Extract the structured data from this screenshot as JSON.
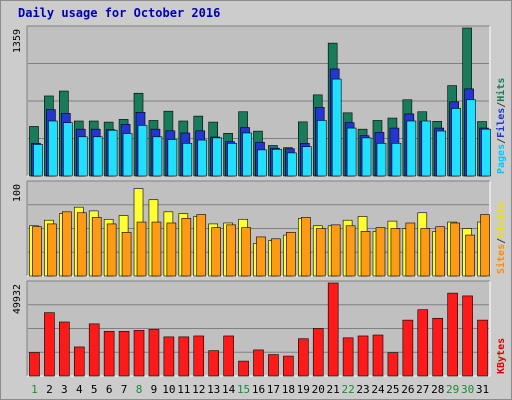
{
  "chart_data": {
    "type": "bar",
    "title": "Daily usage for October 2016",
    "categories": [
      "1",
      "2",
      "3",
      "4",
      "5",
      "6",
      "7",
      "8",
      "9",
      "10",
      "11",
      "12",
      "13",
      "14",
      "15",
      "16",
      "17",
      "18",
      "19",
      "20",
      "21",
      "22",
      "23",
      "24",
      "25",
      "26",
      "27",
      "28",
      "29",
      "30",
      "31"
    ],
    "weekend_days": [
      "1",
      "8",
      "15",
      "22",
      "29",
      "30"
    ],
    "panels": [
      {
        "name": "hits-files-pages",
        "y_max_label": "1359",
        "ylim": [
          0,
          1359
        ],
        "right_labels": [
          {
            "text": "Pages",
            "color": "#00c8ff"
          },
          {
            "text": "/",
            "color": "#404040"
          },
          {
            "text": "Files",
            "color": "#1a3bc8"
          },
          {
            "text": "/",
            "color": "#404040"
          },
          {
            "text": "Hits",
            "color": "#1a7a5a"
          }
        ],
        "series": [
          {
            "name": "Hits",
            "color": "#187b5b",
            "values": [
              455,
              735,
              780,
              505,
              505,
              495,
              520,
              760,
              510,
              595,
              505,
              550,
              495,
              392,
              590,
              412,
              280,
              260,
              497,
              745,
              1220,
              580,
              430,
              510,
              532,
              700,
              590,
              502,
              830,
              1359,
              500
            ]
          },
          {
            "name": "Files",
            "color": "#2436d2",
            "values": [
              300,
              610,
              575,
              430,
              430,
              425,
              475,
              585,
              430,
              415,
              395,
              415,
              358,
              315,
              445,
              310,
              255,
              250,
              300,
              630,
              983,
              490,
              370,
              400,
              440,
              570,
              500,
              440,
              681,
              800,
              440
            ]
          },
          {
            "name": "Pages",
            "color": "#20e0ff",
            "values": [
              290,
              505,
              490,
              360,
              360,
              420,
              390,
              465,
              360,
              335,
              300,
              330,
              350,
              300,
              395,
              240,
              245,
              212,
              270,
              510,
              890,
              440,
              350,
              300,
              300,
              505,
              505,
              413,
              620,
              700,
              430
            ]
          }
        ]
      },
      {
        "name": "visits-sites",
        "y_max_label": "100",
        "ylim": [
          0,
          100
        ],
        "right_labels": [
          {
            "text": "Sites",
            "color": "#ff8c00"
          },
          {
            "text": "/",
            "color": "#404040"
          },
          {
            "text": "Visits",
            "color": "#f0e000"
          }
        ],
        "series": [
          {
            "name": "Visits",
            "color": "#ffff33",
            "values": [
              54,
              60,
              67,
              74,
              70,
              61,
              65,
              94,
              82,
              69,
              67,
              64,
              56,
              57,
              61,
              35,
              38,
              44,
              62,
              54,
              54,
              60,
              64,
              48,
              59,
              51,
              68,
              48,
              58,
              51,
              58
            ]
          },
          {
            "name": "Sites",
            "color": "#ff9a14",
            "values": [
              53,
              56,
              69,
              68,
              63,
              56,
              47,
              58,
              58,
              57,
              62,
              66,
              52,
              55,
              52,
              42,
              40,
              47,
              63,
              51,
              55,
              54,
              48,
              52,
              51,
              57,
              51,
              53,
              57,
              44,
              66
            ]
          }
        ]
      },
      {
        "name": "kbytes",
        "y_max_label": "49932",
        "ylim": [
          0,
          49932
        ],
        "right_labels": [
          {
            "text": "KBytes",
            "color": "#dd0000"
          }
        ],
        "series": [
          {
            "name": "KBytes",
            "color": "#ff1a1a",
            "values": [
              12600,
              34000,
              29000,
              15600,
              28000,
              24000,
              24000,
              24500,
              25000,
              21000,
              21000,
              21500,
              13600,
              21500,
              8000,
              14000,
              11500,
              10700,
              20000,
              25500,
              49932,
              20500,
              21500,
              22000,
              12500,
              30000,
              35600,
              31000,
              44500,
              43000,
              30000
            ]
          }
        ]
      }
    ]
  }
}
